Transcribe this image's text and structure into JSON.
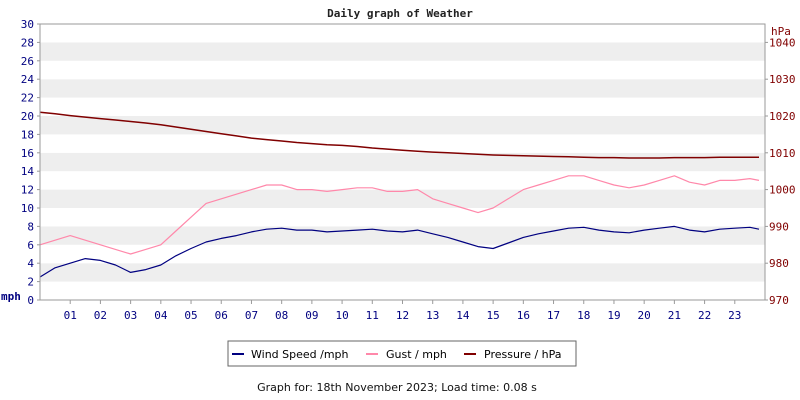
{
  "chart_data": {
    "type": "line",
    "title": "Daily graph of Weather",
    "ylabel_left": "mph",
    "ylabel_right": "hPa",
    "ylim_left": [
      0,
      30
    ],
    "ylim_right": [
      970,
      1045
    ],
    "yticks_left": [
      "0",
      "2",
      "4",
      "6",
      "8",
      "10",
      "12",
      "14",
      "16",
      "18",
      "20",
      "22",
      "24",
      "26",
      "28",
      "30"
    ],
    "yticks_right": [
      "970",
      "980",
      "990",
      "1000",
      "1010",
      "1020",
      "1030",
      "1040"
    ],
    "xlim": [
      0,
      24
    ],
    "xticks": [
      "01",
      "02",
      "03",
      "04",
      "05",
      "06",
      "07",
      "08",
      "09",
      "10",
      "11",
      "12",
      "13",
      "14",
      "15",
      "16",
      "17",
      "18",
      "19",
      "20",
      "21",
      "22",
      "23"
    ],
    "grid": "horizontal alternating bands",
    "legend_position": "bottom",
    "series": [
      {
        "name": "Wind Speed /mph",
        "color": "#000080",
        "axis": "left",
        "x": [
          0,
          0.5,
          1,
          1.5,
          2,
          2.5,
          3,
          3.5,
          4,
          4.5,
          5,
          5.5,
          6,
          6.5,
          7,
          7.5,
          8,
          8.5,
          9,
          9.5,
          10,
          10.5,
          11,
          11.5,
          12,
          12.5,
          13,
          13.5,
          14,
          14.5,
          15,
          15.5,
          16,
          16.5,
          17,
          17.5,
          18,
          18.5,
          19,
          19.5,
          20,
          20.5,
          21,
          21.5,
          22,
          22.5,
          23,
          23.5,
          23.8
        ],
        "values": [
          2.5,
          3.5,
          4.0,
          4.5,
          4.3,
          3.8,
          3.0,
          3.3,
          3.8,
          4.8,
          5.6,
          6.3,
          6.7,
          7.0,
          7.4,
          7.7,
          7.8,
          7.6,
          7.6,
          7.4,
          7.5,
          7.6,
          7.7,
          7.5,
          7.4,
          7.6,
          7.2,
          6.8,
          6.3,
          5.8,
          5.6,
          6.2,
          6.8,
          7.2,
          7.5,
          7.8,
          7.9,
          7.6,
          7.4,
          7.3,
          7.6,
          7.8,
          8.0,
          7.6,
          7.4,
          7.7,
          7.8,
          7.9,
          7.7
        ]
      },
      {
        "name": "Gust / mph",
        "color": "#ff88aa",
        "axis": "left",
        "x": [
          0,
          0.5,
          1,
          1.5,
          2,
          2.5,
          3,
          3.5,
          4,
          4.5,
          5,
          5.5,
          6,
          6.5,
          7,
          7.5,
          8,
          8.5,
          9,
          9.5,
          10,
          10.5,
          11,
          11.5,
          12,
          12.5,
          13,
          13.5,
          14,
          14.5,
          15,
          15.5,
          16,
          16.5,
          17,
          17.5,
          18,
          18.5,
          19,
          19.5,
          20,
          20.5,
          21,
          21.5,
          22,
          22.5,
          23,
          23.5,
          23.8
        ],
        "values": [
          6,
          6.5,
          7,
          6.5,
          6,
          5.5,
          5,
          5.5,
          6,
          7.5,
          9,
          10.5,
          11,
          11.5,
          12,
          12.5,
          12.5,
          12,
          12,
          11.8,
          12,
          12.2,
          12.2,
          11.8,
          11.8,
          12,
          11,
          10.5,
          10,
          9.5,
          10,
          11,
          12,
          12.5,
          13,
          13.5,
          13.5,
          13,
          12.5,
          12.2,
          12.5,
          13,
          13.5,
          12.8,
          12.5,
          13,
          13,
          13.2,
          13
        ]
      },
      {
        "name": "Pressure / hPa",
        "color": "#800000",
        "axis": "right",
        "x": [
          0,
          0.5,
          1,
          1.5,
          2,
          2.5,
          3,
          3.5,
          4,
          4.5,
          5,
          5.5,
          6,
          6.5,
          7,
          7.5,
          8,
          8.5,
          9,
          9.5,
          10,
          10.5,
          11,
          11.5,
          12,
          12.5,
          13,
          13.5,
          14,
          14.5,
          15,
          15.5,
          16,
          16.5,
          17,
          17.5,
          18,
          18.5,
          19,
          19.5,
          20,
          20.5,
          21,
          21.5,
          22,
          22.5,
          23,
          23.5,
          23.8
        ],
        "values": [
          1021.0,
          1020.6,
          1020.1,
          1019.7,
          1019.3,
          1018.9,
          1018.5,
          1018.1,
          1017.6,
          1017.0,
          1016.4,
          1015.8,
          1015.2,
          1014.6,
          1014.0,
          1013.6,
          1013.2,
          1012.8,
          1012.5,
          1012.2,
          1012.0,
          1011.7,
          1011.3,
          1011.0,
          1010.7,
          1010.4,
          1010.2,
          1010.0,
          1009.8,
          1009.6,
          1009.4,
          1009.3,
          1009.2,
          1009.1,
          1009.0,
          1008.9,
          1008.8,
          1008.7,
          1008.7,
          1008.6,
          1008.6,
          1008.6,
          1008.7,
          1008.7,
          1008.7,
          1008.8,
          1008.8,
          1008.8,
          1008.8
        ]
      }
    ]
  },
  "footer": "Graph for: 18th November 2023; Load time: 0.08 s"
}
